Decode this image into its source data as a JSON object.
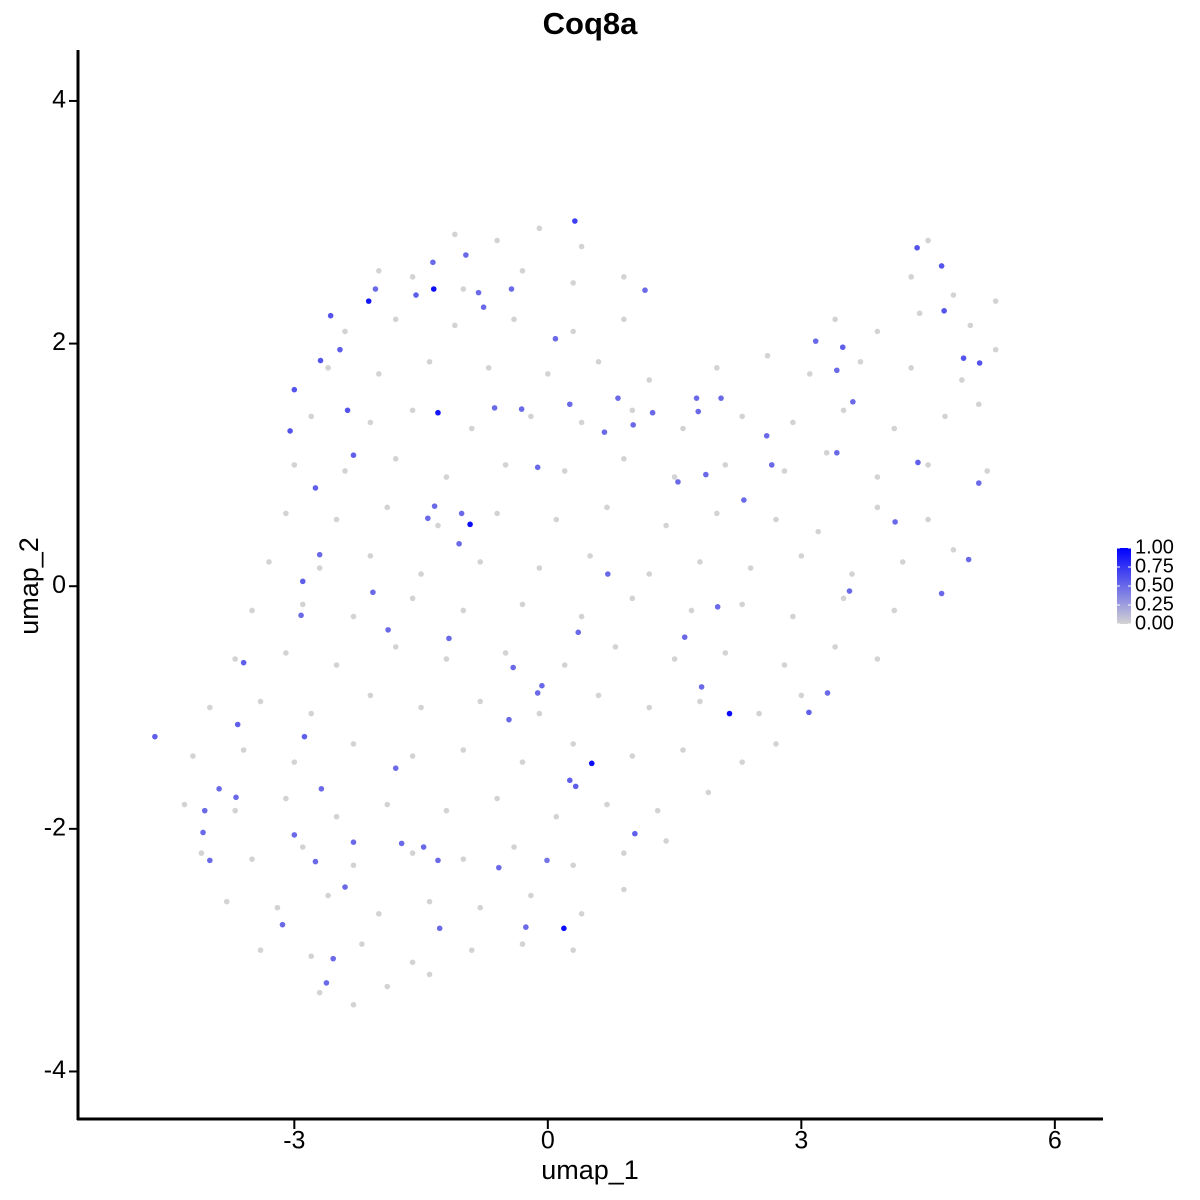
{
  "chart_data": {
    "type": "scatter",
    "title": "Coq8a",
    "x_label": "umap_1",
    "y_label": "umap_2",
    "xlim": [
      -5.56,
      6.57
    ],
    "ylim": [
      -4.4,
      4.42
    ],
    "xticks": [
      -3,
      0,
      3,
      6
    ],
    "yticks": [
      -4,
      -2,
      0,
      2,
      4
    ],
    "grid": false,
    "low_color": "#d3d3d3",
    "high_color": "#0000ff",
    "colorlim": [
      0,
      1
    ],
    "colorbar_ticks": [
      {
        "value": 0,
        "label": "0.00"
      },
      {
        "value": 0.25,
        "label": "0.25"
      },
      {
        "value": 0.5,
        "label": "0.50"
      },
      {
        "value": 0.75,
        "label": "0.75"
      },
      {
        "value": 1,
        "label": "1.00"
      }
    ],
    "series": [
      {
        "x": [
          -1.1,
          -0.6,
          -0.1,
          0.4,
          -2.0,
          -1.6,
          -1.0,
          -0.3,
          0.3,
          0.9,
          4.3,
          4.8,
          4.5,
          -2.4,
          -1.8,
          -1.1,
          -0.4,
          0.3,
          0.9,
          3.4,
          3.9,
          4.4,
          5.0,
          5.3,
          -2.6,
          -2.0,
          -1.4,
          -0.7,
          0,
          0.6,
          1.2,
          2.0,
          2.6,
          3.1,
          3.7,
          4.3,
          4.9,
          5.3,
          -2.8,
          -2.1,
          -1.6,
          -0.9,
          -0.2,
          0.4,
          1.0,
          1.6,
          2.3,
          2.9,
          3.5,
          4.1,
          4.7,
          5.1,
          -3.0,
          -2.4,
          -1.8,
          -1.2,
          -0.5,
          0.2,
          0.9,
          1.5,
          2.1,
          2.8,
          3.3,
          3.9,
          4.5,
          5.2,
          -3.1,
          -2.5,
          -1.9,
          -1.3,
          -0.6,
          0.1,
          0.7,
          1.4,
          2.0,
          2.7,
          3.2,
          3.9,
          4.5,
          -3.3,
          -2.7,
          -2.1,
          -1.5,
          -0.8,
          -0.1,
          0.5,
          1.2,
          1.8,
          2.4,
          3.0,
          3.6,
          4.2,
          4.8,
          -3.5,
          -2.9,
          -2.3,
          -1.6,
          -1.0,
          -0.3,
          0.4,
          1.0,
          1.7,
          2.3,
          2.9,
          3.5,
          4.1,
          -3.7,
          -3.1,
          -2.5,
          -1.8,
          -1.2,
          -0.5,
          0.2,
          0.8,
          1.5,
          2.1,
          2.8,
          3.4,
          3.9,
          -4.0,
          -3.4,
          -2.8,
          -2.1,
          -1.5,
          -0.8,
          -0.1,
          0.6,
          1.2,
          1.8,
          2.5,
          3.0,
          -4.2,
          -3.6,
          -3.0,
          -2.3,
          -1.6,
          -1.0,
          -0.3,
          0.3,
          1.0,
          1.6,
          2.3,
          2.7,
          -4.3,
          -3.7,
          -3.1,
          -2.5,
          -1.9,
          -1.2,
          -0.6,
          0.1,
          0.7,
          1.3,
          1.9,
          -4.1,
          -3.5,
          -2.9,
          -2.3,
          -1.6,
          -1.0,
          -0.4,
          0.3,
          0.9,
          1.4,
          -3.8,
          -3.2,
          -2.6,
          -2.0,
          -1.4,
          -0.8,
          -0.2,
          0.4,
          0.9,
          -3.4,
          -2.8,
          -2.2,
          -1.6,
          -0.9,
          -0.3,
          0.3,
          -2.7,
          -2.3,
          -1.9,
          -1.4
        ],
        "y": [
          2.9,
          2.85,
          2.95,
          2.8,
          2.6,
          2.55,
          2.45,
          2.6,
          2.5,
          2.55,
          2.55,
          2.4,
          2.85,
          2.1,
          2.2,
          2.15,
          2.2,
          2.1,
          2.2,
          2.2,
          2.1,
          2.25,
          2.15,
          2.35,
          1.8,
          1.75,
          1.85,
          1.8,
          1.75,
          1.85,
          1.7,
          1.8,
          1.9,
          1.75,
          1.85,
          1.8,
          1.7,
          1.95,
          1.4,
          1.35,
          1.45,
          1.3,
          1.4,
          1.35,
          1.45,
          1.3,
          1.4,
          1.35,
          1.45,
          1.3,
          1.4,
          1.5,
          1.0,
          0.95,
          1.05,
          0.9,
          1.0,
          0.95,
          1.05,
          0.9,
          1.0,
          0.95,
          1.1,
          0.9,
          1.0,
          0.95,
          0.6,
          0.55,
          0.65,
          0.5,
          0.6,
          0.55,
          0.65,
          0.5,
          0.6,
          0.55,
          0.45,
          0.65,
          0.55,
          0.2,
          0.15,
          0.25,
          0.1,
          0.2,
          0.15,
          0.25,
          0.1,
          0.2,
          0.15,
          0.25,
          0.1,
          0.2,
          0.3,
          -0.2,
          -0.15,
          -0.25,
          -0.1,
          -0.2,
          -0.15,
          -0.25,
          -0.1,
          -0.2,
          -0.15,
          -0.25,
          -0.1,
          -0.2,
          -0.6,
          -0.55,
          -0.65,
          -0.5,
          -0.6,
          -0.55,
          -0.65,
          -0.5,
          -0.6,
          -0.55,
          -0.65,
          -0.5,
          -0.6,
          -1.0,
          -0.95,
          -1.05,
          -0.9,
          -1.0,
          -0.95,
          -1.05,
          -0.9,
          -1.0,
          -0.95,
          -1.05,
          -0.9,
          -1.4,
          -1.35,
          -1.45,
          -1.3,
          -1.4,
          -1.35,
          -1.45,
          -1.3,
          -1.4,
          -1.35,
          -1.45,
          -1.3,
          -1.8,
          -1.85,
          -1.75,
          -1.9,
          -1.8,
          -1.85,
          -1.75,
          -1.9,
          -1.8,
          -1.85,
          -1.7,
          -2.2,
          -2.25,
          -2.15,
          -2.3,
          -2.2,
          -2.25,
          -2.15,
          -2.3,
          -2.2,
          -2.1,
          -2.6,
          -2.65,
          -2.55,
          -2.7,
          -2.6,
          -2.65,
          -2.55,
          -2.7,
          -2.5,
          -3.0,
          -3.05,
          -2.95,
          -3.1,
          -3.0,
          -2.95,
          -3.0,
          -3.35,
          -3.45,
          -3.3,
          -3.2
        ],
        "values": [
          0,
          0,
          0,
          0,
          0,
          0,
          0,
          0,
          0,
          0,
          0,
          0,
          0,
          0,
          0,
          0,
          0,
          0,
          0,
          0,
          0,
          0,
          0,
          0,
          0,
          0,
          0,
          0,
          0,
          0,
          0,
          0,
          0,
          0,
          0,
          0,
          0,
          0,
          0,
          0,
          0,
          0,
          0,
          0,
          0,
          0,
          0,
          0,
          0,
          0,
          0,
          0,
          0,
          0,
          0,
          0,
          0,
          0,
          0,
          0,
          0,
          0,
          0,
          0,
          0,
          0,
          0,
          0,
          0,
          0,
          0,
          0,
          0,
          0,
          0,
          0,
          0,
          0,
          0,
          0,
          0,
          0,
          0,
          0,
          0,
          0,
          0,
          0,
          0,
          0,
          0,
          0,
          0,
          0,
          0,
          0,
          0,
          0,
          0,
          0,
          0,
          0,
          0,
          0,
          0,
          0,
          0,
          0,
          0,
          0,
          0,
          0,
          0,
          0,
          0,
          0,
          0,
          0,
          0,
          0,
          0,
          0,
          0,
          0,
          0,
          0,
          0,
          0,
          0,
          0,
          0,
          0,
          0,
          0,
          0,
          0,
          0,
          0,
          0,
          0,
          0,
          0,
          0,
          0,
          0,
          0,
          0,
          0,
          0,
          0,
          0,
          0,
          0,
          0,
          0,
          0,
          0,
          0,
          0,
          0,
          0,
          0,
          0,
          0,
          0,
          0,
          0,
          0,
          0,
          0,
          0,
          0,
          0,
          0,
          0,
          0,
          0,
          0,
          0,
          0,
          0,
          0,
          0,
          0
        ]
      },
      {
        "x": [
          -2.12,
          -1.35,
          -1.3,
          -0.92,
          2.15,
          0.52,
          0.19,
          0.32,
          4.37,
          4.66,
          4.69,
          4.92,
          5.11,
          -2.57,
          -2.69,
          -2.46,
          -3.0,
          -3.05,
          -2.37,
          -2.3,
          -2.75,
          -2.7,
          -2.9,
          -2.92,
          -2.07,
          -1.89,
          -3.6,
          -3.67,
          -4.65,
          -2.88,
          -1.8,
          -3.69,
          -3.89,
          -4.06,
          -4.08,
          -4.0,
          -3.0,
          -2.68,
          -2.75,
          -2.3,
          -2.4,
          -1.73,
          -1.47,
          -1.3,
          -1.28,
          -2.62,
          -2.54,
          -3.14,
          -0.58,
          -0.01,
          -0.26,
          0.33,
          0.26,
          -0.46,
          -0.12,
          -0.07,
          -0.41,
          -1.17,
          0.36,
          1.62,
          1.82,
          2.01,
          1.03,
          3.09,
          3.31,
          3.57,
          4.66,
          4.98,
          5.1,
          4.38,
          4.11,
          3.42,
          3.61,
          3.42,
          3.49,
          3.17,
          2.65,
          2.59,
          2.32,
          1.87,
          1.54,
          1.78,
          1.76,
          2.05,
          1.24,
          1.01,
          0.83,
          0.67,
          0.71,
          1.15,
          0.09,
          0.26,
          -0.12,
          -0.31,
          -0.63,
          -1.02,
          -1.05,
          -1.42,
          -1.34,
          -0.76,
          -0.82,
          -0.97,
          -1.36,
          -1.56,
          -2.04,
          -0.43
        ],
        "y": [
          2.35,
          2.45,
          1.43,
          0.51,
          -1.05,
          -1.46,
          -2.82,
          3.01,
          2.79,
          2.64,
          2.27,
          1.88,
          1.84,
          2.23,
          1.86,
          1.95,
          1.62,
          1.28,
          1.45,
          1.08,
          0.81,
          0.26,
          0.04,
          -0.24,
          -0.05,
          -0.36,
          -0.63,
          -1.14,
          -1.24,
          -1.24,
          -1.5,
          -1.74,
          -1.67,
          -1.85,
          -2.03,
          -2.26,
          -2.05,
          -1.67,
          -2.27,
          -2.11,
          -2.48,
          -2.12,
          -2.15,
          -2.26,
          -2.82,
          -3.27,
          -3.07,
          -2.79,
          -2.32,
          -2.26,
          -2.81,
          -1.65,
          -1.6,
          -1.1,
          -0.88,
          -0.82,
          -0.67,
          -0.43,
          -0.38,
          -0.42,
          -0.83,
          -0.17,
          -2.04,
          -1.04,
          -0.88,
          -0.04,
          -0.06,
          0.22,
          0.85,
          1.02,
          0.53,
          1.1,
          1.52,
          1.78,
          1.97,
          2.02,
          1.0,
          1.24,
          0.71,
          0.92,
          0.86,
          1.44,
          1.55,
          1.55,
          1.43,
          1.33,
          1.55,
          1.27,
          0.1,
          2.44,
          2.04,
          1.5,
          0.98,
          1.46,
          1.47,
          0.6,
          0.35,
          0.56,
          0.66,
          2.3,
          2.42,
          2.73,
          2.67,
          2.4,
          2.45,
          2.45
        ],
        "values": [
          0.9,
          0.95,
          0.9,
          0.95,
          0.95,
          0.95,
          0.95,
          0.7,
          0.6,
          0.6,
          0.6,
          0.6,
          0.6,
          0.6,
          0.6,
          0.55,
          0.6,
          0.6,
          0.6,
          0.55,
          0.55,
          0.5,
          0.55,
          0.5,
          0.5,
          0.5,
          0.55,
          0.55,
          0.55,
          0.55,
          0.5,
          0.5,
          0.5,
          0.5,
          0.5,
          0.5,
          0.5,
          0.5,
          0.5,
          0.5,
          0.5,
          0.5,
          0.5,
          0.5,
          0.5,
          0.5,
          0.5,
          0.5,
          0.5,
          0.45,
          0.5,
          0.55,
          0.55,
          0.5,
          0.5,
          0.5,
          0.5,
          0.5,
          0.5,
          0.5,
          0.5,
          0.5,
          0.55,
          0.55,
          0.5,
          0.5,
          0.5,
          0.5,
          0.5,
          0.55,
          0.5,
          0.5,
          0.5,
          0.5,
          0.55,
          0.5,
          0.5,
          0.5,
          0.5,
          0.5,
          0.5,
          0.5,
          0.5,
          0.5,
          0.5,
          0.5,
          0.5,
          0.5,
          0.5,
          0.5,
          0.5,
          0.5,
          0.5,
          0.5,
          0.5,
          0.5,
          0.5,
          0.5,
          0.5,
          0.5,
          0.5,
          0.5,
          0.5,
          0.55,
          0.5,
          0.5
        ]
      }
    ]
  }
}
